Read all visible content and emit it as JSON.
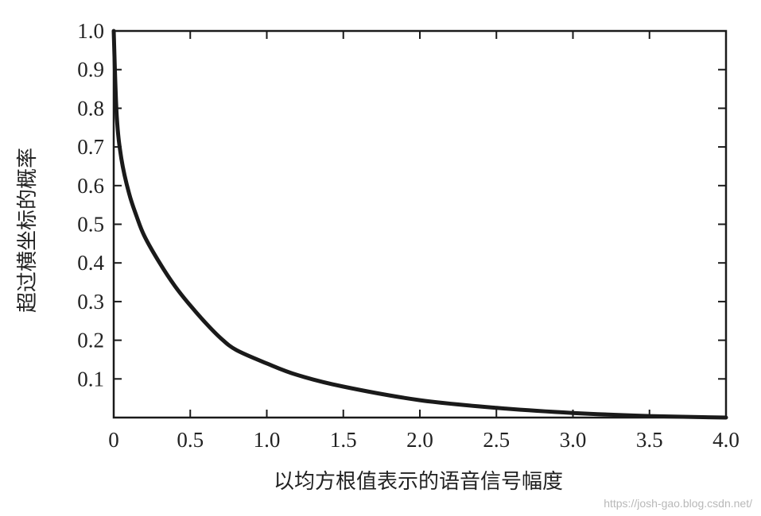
{
  "chart_data": {
    "type": "line",
    "title": "",
    "xlabel": "以均方根值表示的语音信号幅度",
    "ylabel": "超过横坐标的概率",
    "xlim": [
      0,
      4.0
    ],
    "ylim": [
      0,
      1.0
    ],
    "grid": false,
    "x_ticks": [
      "0",
      "0.5",
      "1.0",
      "1.5",
      "2.0",
      "2.5",
      "3.0",
      "3.5",
      "4.0"
    ],
    "y_ticks": [
      "0.1",
      "0.2",
      "0.3",
      "0.4",
      "0.5",
      "0.6",
      "0.7",
      "0.8",
      "0.9",
      "1.0"
    ],
    "series": [
      {
        "x": [
          0,
          0.02,
          0.05,
          0.1,
          0.15,
          0.2,
          0.3,
          0.4,
          0.5,
          0.6,
          0.7,
          0.8,
          1.0,
          1.2,
          1.5,
          2.0,
          2.5,
          3.0,
          3.5,
          4.0
        ],
        "y": [
          1.0,
          0.78,
          0.67,
          0.58,
          0.52,
          0.47,
          0.4,
          0.34,
          0.29,
          0.245,
          0.205,
          0.175,
          0.14,
          0.11,
          0.08,
          0.045,
          0.025,
          0.012,
          0.004,
          0.0
        ],
        "color": "#1a1a1a"
      }
    ]
  },
  "watermark": "https://josh-gao.blog.csdn.net/"
}
